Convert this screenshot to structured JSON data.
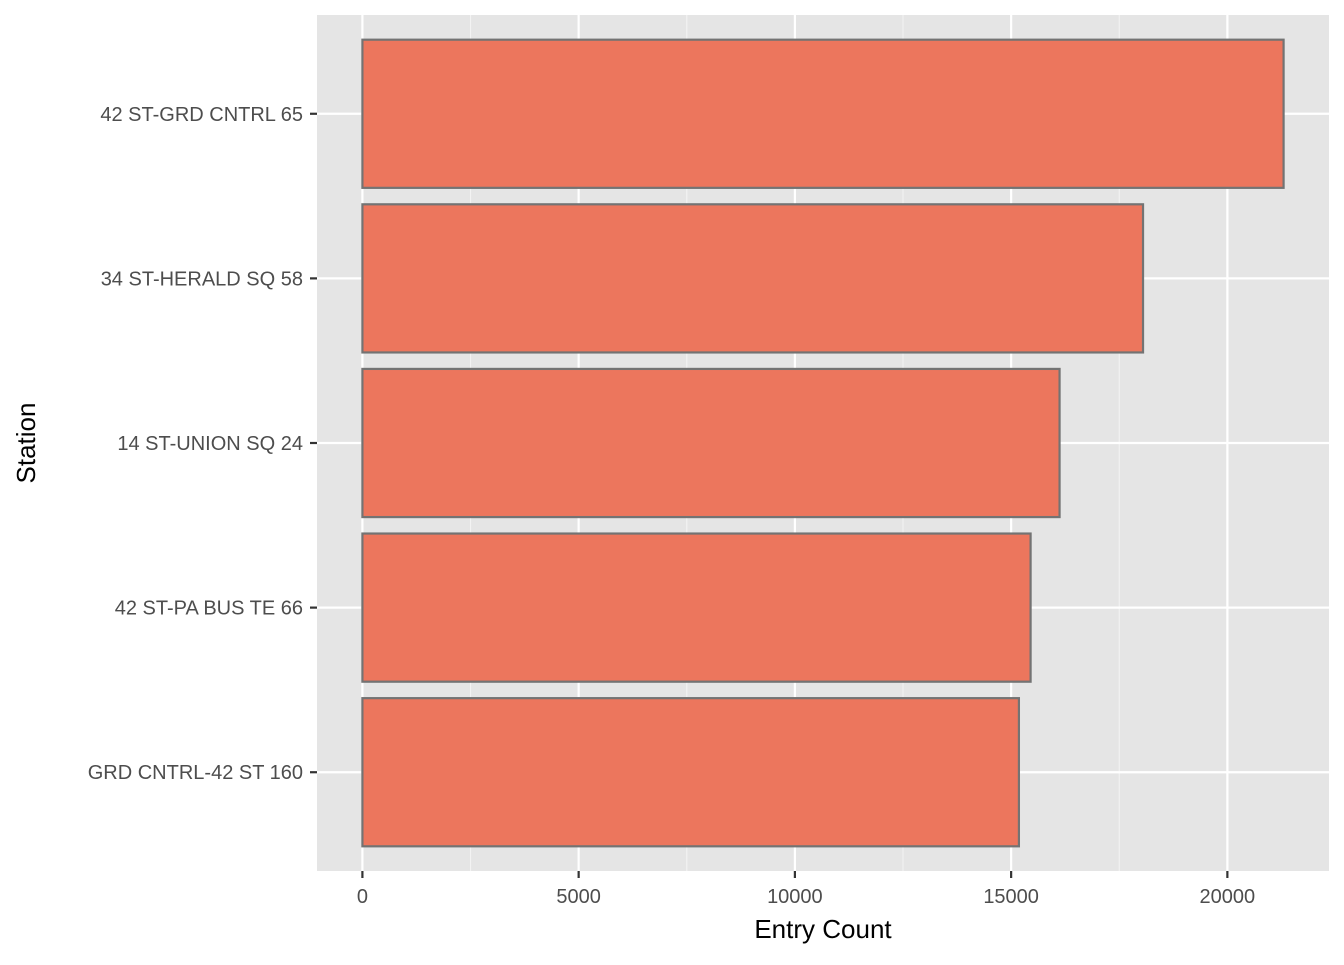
{
  "chart_data": {
    "type": "bar",
    "orientation": "horizontal",
    "title": "",
    "xlabel": "Entry Count",
    "ylabel": "Station",
    "categories": [
      "42 ST-GRD CNTRL 65",
      "34 ST-HERALD SQ 58",
      "14 ST-UNION SQ 24",
      "42 ST-PA BUS TE 66",
      "GRD CNTRL-42 ST 160"
    ],
    "values": [
      21300,
      18050,
      16120,
      15450,
      15180
    ],
    "xlim": [
      -1050,
      22350
    ],
    "x_ticks": [
      0,
      5000,
      10000,
      15000,
      20000
    ],
    "x_tick_labels": [
      "0",
      "5000",
      "10000",
      "15000",
      "20000"
    ],
    "grid": true,
    "legend": "none",
    "colors": {
      "panel_background": "#e5e5e5",
      "grid_major": "#ffffff",
      "bar_fill": "#ec765d",
      "bar_outline": "#737373",
      "tick_label": "#4d4d4d",
      "axis_title": "#000000"
    }
  }
}
